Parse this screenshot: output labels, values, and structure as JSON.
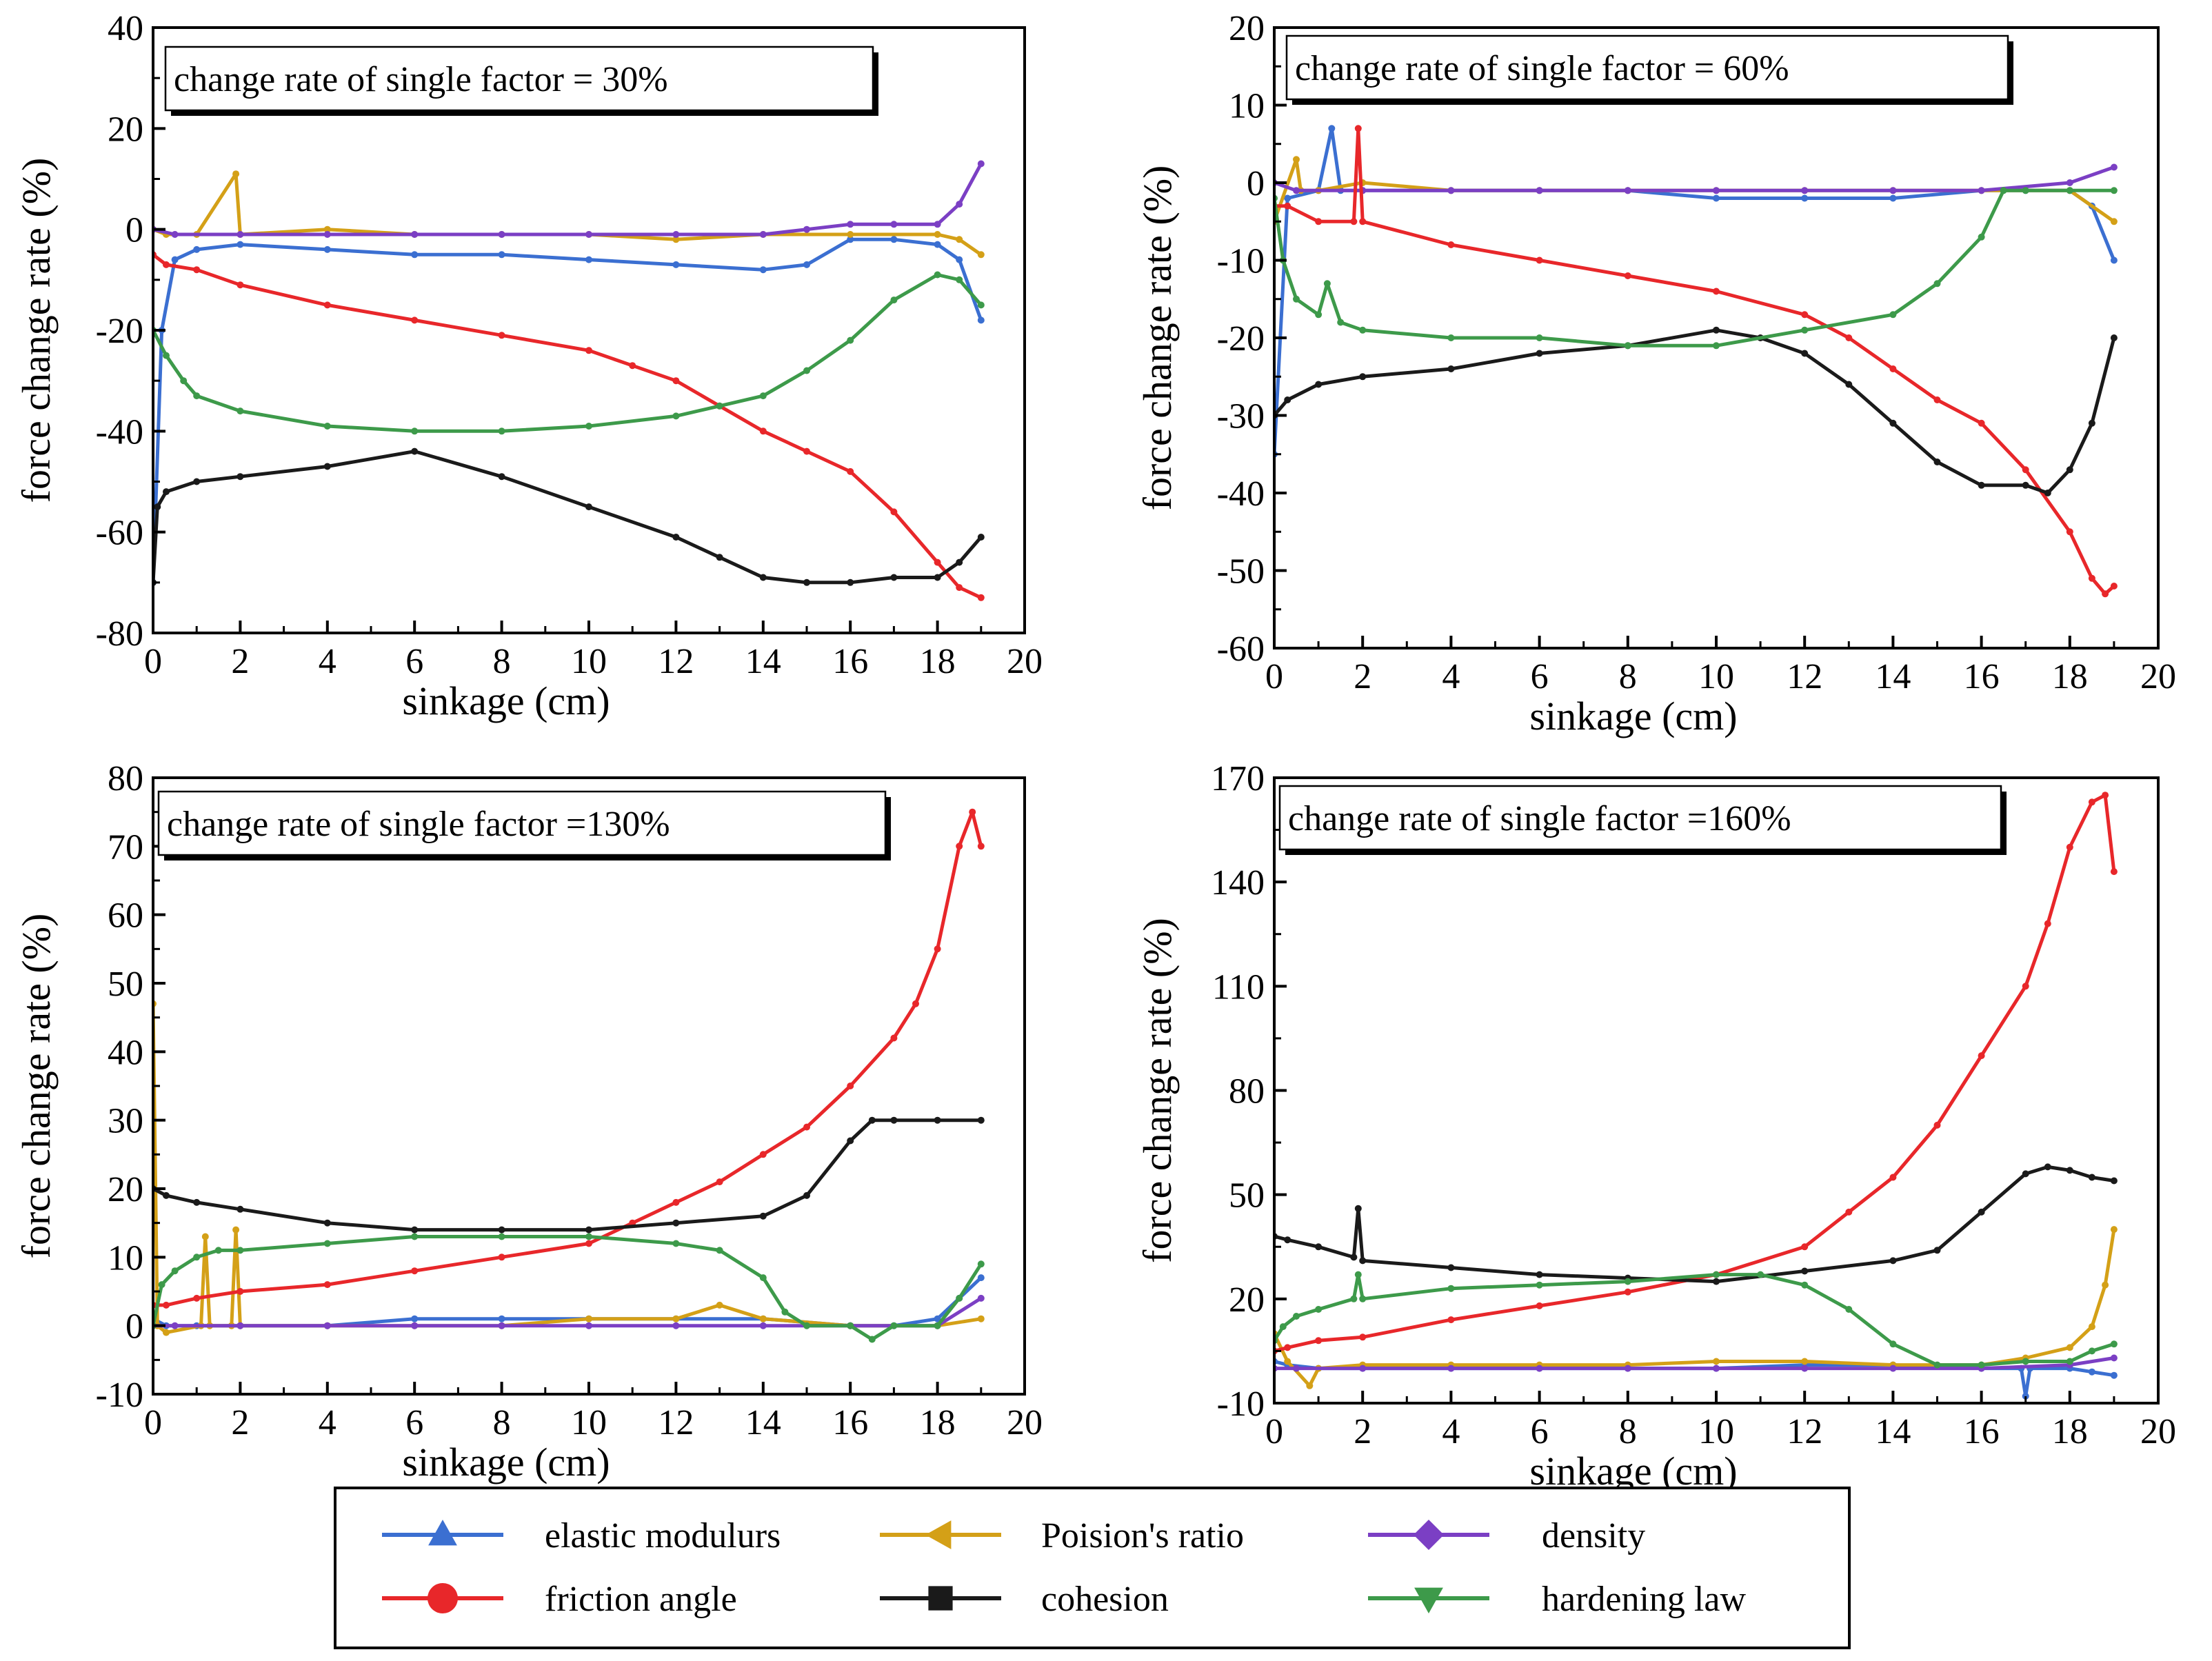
{
  "legend": [
    {
      "label": "elastic modulurs",
      "color": "#3b6fd1",
      "marker": "triangle-up-icon"
    },
    {
      "label": "Poision's ratio",
      "color": "#d4a017",
      "marker": "triangle-left-icon"
    },
    {
      "label": "density",
      "color": "#7b3fc4",
      "marker": "diamond-icon"
    },
    {
      "label": "friction angle",
      "color": "#e8272a",
      "marker": "circle-icon"
    },
    {
      "label": "cohesion",
      "color": "#1a1a1a",
      "marker": "square-icon"
    },
    {
      "label": "hardening law",
      "color": "#3d9a4a",
      "marker": "triangle-down-icon"
    }
  ],
  "chart_data": [
    {
      "type": "line",
      "annotation": "change rate of single factor = 30%",
      "xlabel": "sinkage (cm)",
      "ylabel": "force change rate (%)",
      "xlim": [
        0,
        20
      ],
      "ylim": [
        -80,
        40
      ],
      "xticks": [
        0,
        2,
        4,
        6,
        8,
        10,
        12,
        14,
        16,
        18,
        20
      ],
      "yticks": [
        -80,
        -60,
        -40,
        -20,
        0,
        20,
        40
      ],
      "series": [
        {
          "name": "elastic modulurs",
          "x": [
            0,
            0.2,
            0.5,
            1,
            2,
            4,
            6,
            8,
            10,
            12,
            14,
            15,
            16,
            17,
            18,
            18.5,
            19
          ],
          "y": [
            -70,
            -20,
            -6,
            -4,
            -3,
            -4,
            -5,
            -5,
            -6,
            -7,
            -8,
            -7,
            -2,
            -2,
            -3,
            -6,
            -18
          ]
        },
        {
          "name": "Poision's ratio",
          "x": [
            0,
            0.3,
            1,
            1.9,
            2,
            4,
            6,
            8,
            10,
            12,
            14,
            16,
            18,
            18.5,
            19
          ],
          "y": [
            0,
            -1,
            -1,
            11,
            -1,
            0,
            -1,
            -1,
            -1,
            -2,
            -1,
            -1,
            -1,
            -2,
            -5
          ]
        },
        {
          "name": "density",
          "x": [
            0,
            0.5,
            2,
            4,
            6,
            8,
            10,
            12,
            14,
            15,
            16,
            17,
            18,
            18.5,
            19
          ],
          "y": [
            0,
            -1,
            -1,
            -1,
            -1,
            -1,
            -1,
            -1,
            -1,
            0,
            1,
            1,
            1,
            5,
            13
          ]
        },
        {
          "name": "friction angle",
          "x": [
            0,
            0.3,
            1,
            2,
            4,
            6,
            8,
            10,
            11,
            12,
            13,
            14,
            15,
            16,
            17,
            18,
            18.5,
            19
          ],
          "y": [
            -5,
            -7,
            -8,
            -11,
            -15,
            -18,
            -21,
            -24,
            -27,
            -30,
            -35,
            -40,
            -44,
            -48,
            -56,
            -66,
            -71,
            -73
          ]
        },
        {
          "name": "cohesion",
          "x": [
            0,
            0.1,
            0.3,
            1,
            2,
            4,
            6,
            8,
            10,
            12,
            13,
            14,
            15,
            16,
            17,
            18,
            18.5,
            19
          ],
          "y": [
            -70,
            -55,
            -52,
            -50,
            -49,
            -47,
            -44,
            -49,
            -55,
            -61,
            -65,
            -69,
            -70,
            -70,
            -69,
            -69,
            -66,
            -61
          ]
        },
        {
          "name": "hardening law",
          "x": [
            0,
            0.3,
            0.7,
            1,
            2,
            4,
            6,
            8,
            10,
            12,
            13,
            14,
            15,
            16,
            17,
            18,
            18.5,
            19
          ],
          "y": [
            -20,
            -25,
            -30,
            -33,
            -36,
            -39,
            -40,
            -40,
            -39,
            -37,
            -35,
            -33,
            -28,
            -22,
            -14,
            -9,
            -10,
            -15
          ]
        }
      ]
    },
    {
      "type": "line",
      "annotation": "change rate of single factor = 60%",
      "xlabel": "sinkage (cm)",
      "ylabel": "force change rate (%)",
      "xlim": [
        0,
        20
      ],
      "ylim": [
        -60,
        20
      ],
      "xticks": [
        0,
        2,
        4,
        6,
        8,
        10,
        12,
        14,
        16,
        18,
        20
      ],
      "yticks": [
        -60,
        -50,
        -40,
        -30,
        -20,
        -10,
        0,
        10,
        20
      ],
      "series": [
        {
          "name": "elastic modulurs",
          "x": [
            0,
            0.3,
            1,
            1.3,
            1.5,
            2,
            4,
            6,
            8,
            10,
            12,
            14,
            16,
            17,
            18,
            18.5,
            19
          ],
          "y": [
            -35,
            -2,
            -1,
            7,
            -1,
            -1,
            -1,
            -1,
            -1,
            -2,
            -2,
            -2,
            -1,
            -1,
            -1,
            -3,
            -10
          ]
        },
        {
          "name": "Poision's ratio",
          "x": [
            0,
            0.5,
            0.6,
            1,
            2,
            4,
            6,
            8,
            10,
            12,
            14,
            16,
            18,
            19
          ],
          "y": [
            -5,
            3,
            -1,
            -1,
            0,
            -1,
            -1,
            -1,
            -1,
            -1,
            -1,
            -1,
            -1,
            -5
          ]
        },
        {
          "name": "density",
          "x": [
            0,
            0.5,
            2,
            4,
            6,
            8,
            10,
            12,
            14,
            16,
            18,
            19
          ],
          "y": [
            0,
            -1,
            -1,
            -1,
            -1,
            -1,
            -1,
            -1,
            -1,
            -1,
            0,
            2
          ]
        },
        {
          "name": "friction angle",
          "x": [
            0,
            0.3,
            1,
            1.8,
            1.9,
            2,
            4,
            6,
            8,
            10,
            12,
            13,
            14,
            15,
            16,
            17,
            18,
            18.5,
            18.8,
            19
          ],
          "y": [
            -3,
            -3,
            -5,
            -5,
            7,
            -5,
            -8,
            -10,
            -12,
            -14,
            -17,
            -20,
            -24,
            -28,
            -31,
            -37,
            -45,
            -51,
            -53,
            -52
          ]
        },
        {
          "name": "cohesion",
          "x": [
            0,
            0.3,
            1,
            2,
            4,
            6,
            8,
            10,
            11,
            12,
            13,
            14,
            15,
            16,
            17,
            17.5,
            18,
            18.5,
            19
          ],
          "y": [
            -30,
            -28,
            -26,
            -25,
            -24,
            -22,
            -21,
            -19,
            -20,
            -22,
            -26,
            -31,
            -36,
            -39,
            -39,
            -40,
            -37,
            -31,
            -20
          ]
        },
        {
          "name": "hardening law",
          "x": [
            0,
            0.2,
            0.5,
            1,
            1.2,
            1.5,
            2,
            4,
            6,
            8,
            10,
            12,
            14,
            15,
            16,
            16.5,
            17,
            18,
            19
          ],
          "y": [
            -2,
            -10,
            -15,
            -17,
            -13,
            -18,
            -19,
            -20,
            -20,
            -21,
            -21,
            -19,
            -17,
            -13,
            -7,
            -1,
            -1,
            -1,
            -1
          ]
        }
      ]
    },
    {
      "type": "line",
      "annotation": "change rate of single factor =130%",
      "xlabel": "sinkage (cm)",
      "ylabel": "force change rate (%)",
      "xlim": [
        0,
        20
      ],
      "ylim": [
        -10,
        80
      ],
      "xticks": [
        0,
        2,
        4,
        6,
        8,
        10,
        12,
        14,
        16,
        18,
        20
      ],
      "yticks": [
        -10,
        0,
        10,
        20,
        30,
        40,
        50,
        60,
        70,
        80
      ],
      "series": [
        {
          "name": "elastic modulurs",
          "x": [
            0,
            0.3,
            1,
            2,
            4,
            6,
            8,
            10,
            12,
            14,
            16,
            17,
            18,
            18.5,
            19
          ],
          "y": [
            1,
            0,
            0,
            0,
            0,
            1,
            1,
            1,
            1,
            1,
            0,
            0,
            1,
            4,
            7
          ]
        },
        {
          "name": "Poision's ratio",
          "x": [
            0,
            0.1,
            0.3,
            1.1,
            1.2,
            1.3,
            1.8,
            1.9,
            2,
            4,
            6,
            8,
            10,
            12,
            13,
            14,
            16,
            18,
            19
          ],
          "y": [
            47,
            0,
            -1,
            0,
            13,
            0,
            0,
            14,
            0,
            0,
            0,
            0,
            1,
            1,
            3,
            1,
            0,
            0,
            1
          ]
        },
        {
          "name": "density",
          "x": [
            0,
            0.5,
            2,
            4,
            6,
            8,
            10,
            12,
            14,
            16,
            18,
            19
          ],
          "y": [
            0,
            0,
            0,
            0,
            0,
            0,
            0,
            0,
            0,
            0,
            0,
            4
          ]
        },
        {
          "name": "friction angle",
          "x": [
            0,
            0.3,
            1,
            2,
            4,
            6,
            8,
            10,
            11,
            12,
            13,
            14,
            15,
            16,
            17,
            17.5,
            18,
            18.5,
            18.8,
            19
          ],
          "y": [
            3,
            3,
            4,
            5,
            6,
            8,
            10,
            12,
            15,
            18,
            21,
            25,
            29,
            35,
            42,
            47,
            55,
            70,
            75,
            70
          ]
        },
        {
          "name": "cohesion",
          "x": [
            0,
            0.3,
            1,
            2,
            4,
            6,
            8,
            10,
            12,
            14,
            15,
            16,
            16.5,
            17,
            18,
            19
          ],
          "y": [
            20,
            19,
            18,
            17,
            15,
            14,
            14,
            14,
            15,
            16,
            19,
            27,
            30,
            30,
            30,
            30
          ]
        },
        {
          "name": "hardening law",
          "x": [
            0,
            0.2,
            0.5,
            1,
            1.5,
            2,
            4,
            6,
            8,
            10,
            12,
            13,
            14,
            14.5,
            15,
            16,
            16.5,
            17,
            18,
            18.5,
            19
          ],
          "y": [
            0,
            6,
            8,
            10,
            11,
            11,
            12,
            13,
            13,
            13,
            12,
            11,
            7,
            2,
            0,
            0,
            -2,
            0,
            0,
            4,
            9
          ]
        }
      ]
    },
    {
      "type": "line",
      "annotation": "change rate of single factor =160%",
      "xlabel": "sinkage (cm)",
      "ylabel": "force change rate (%)",
      "xlim": [
        0,
        20
      ],
      "ylim": [
        -10,
        170
      ],
      "xticks": [
        0,
        2,
        4,
        6,
        8,
        10,
        12,
        14,
        16,
        18,
        20
      ],
      "yticks": [
        -10,
        20,
        50,
        80,
        110,
        140,
        170
      ],
      "series": [
        {
          "name": "elastic modulurs",
          "x": [
            0,
            0.3,
            1,
            2,
            4,
            6,
            8,
            10,
            12,
            14,
            16,
            16.9,
            17,
            17.1,
            18,
            18.5,
            19
          ],
          "y": [
            2,
            1,
            0,
            0,
            0,
            0,
            0,
            0,
            1,
            1,
            0,
            0,
            -8,
            0,
            0,
            -1,
            -2
          ]
        },
        {
          "name": "Poision's ratio",
          "x": [
            0,
            0.3,
            0.8,
            1,
            2,
            4,
            6,
            8,
            10,
            12,
            14,
            16,
            17,
            18,
            18.5,
            18.8,
            19
          ],
          "y": [
            10,
            2,
            -5,
            0,
            1,
            1,
            1,
            1,
            2,
            2,
            1,
            1,
            3,
            6,
            12,
            24,
            40
          ]
        },
        {
          "name": "density",
          "x": [
            0,
            0.5,
            2,
            4,
            6,
            8,
            10,
            12,
            14,
            16,
            18,
            19
          ],
          "y": [
            0,
            0,
            0,
            0,
            0,
            0,
            0,
            0,
            0,
            0,
            1,
            3
          ]
        },
        {
          "name": "friction angle",
          "x": [
            0,
            0.3,
            1,
            2,
            4,
            6,
            8,
            10,
            12,
            13,
            14,
            15,
            16,
            17,
            17.5,
            18,
            18.5,
            18.8,
            19
          ],
          "y": [
            5,
            6,
            8,
            9,
            14,
            18,
            22,
            27,
            35,
            45,
            55,
            70,
            90,
            110,
            128,
            150,
            163,
            165,
            143
          ]
        },
        {
          "name": "cohesion",
          "x": [
            0,
            0.3,
            1,
            1.8,
            1.9,
            2,
            4,
            6,
            8,
            10,
            12,
            14,
            15,
            16,
            17,
            17.5,
            18,
            18.5,
            19
          ],
          "y": [
            38,
            37,
            35,
            32,
            46,
            31,
            29,
            27,
            26,
            25,
            28,
            31,
            34,
            45,
            56,
            58,
            57,
            55,
            54
          ]
        },
        {
          "name": "hardening law",
          "x": [
            0,
            0.2,
            0.5,
            1,
            1.8,
            1.9,
            2,
            4,
            6,
            8,
            10,
            11,
            12,
            13,
            14,
            15,
            16,
            17,
            18,
            18.5,
            19
          ],
          "y": [
            8,
            12,
            15,
            17,
            20,
            27,
            20,
            23,
            24,
            25,
            27,
            27,
            24,
            17,
            7,
            1,
            1,
            2,
            2,
            5,
            7
          ]
        }
      ]
    }
  ]
}
